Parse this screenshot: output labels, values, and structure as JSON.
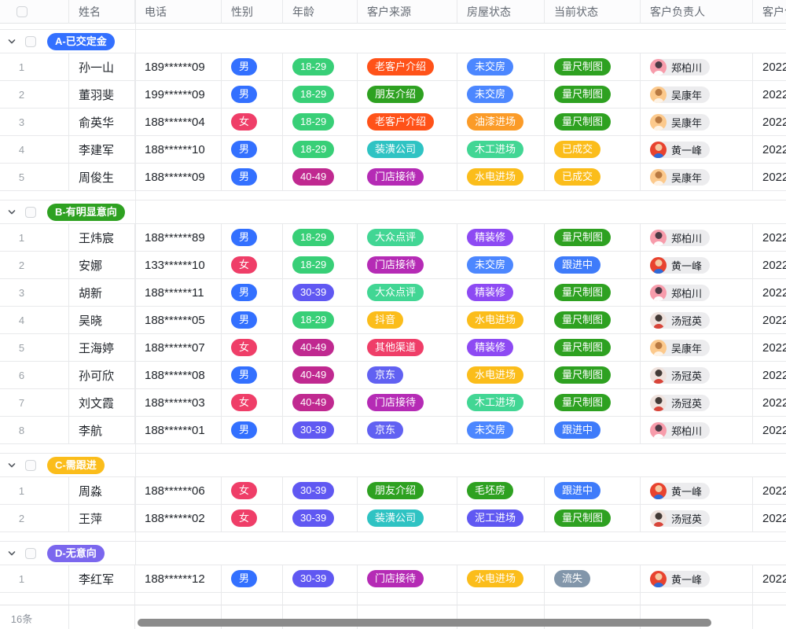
{
  "table": {
    "columns": [
      {
        "key": "index",
        "label": ""
      },
      {
        "key": "name",
        "label": "姓名"
      },
      {
        "key": "phone",
        "label": "电话"
      },
      {
        "key": "gender",
        "label": "性别"
      },
      {
        "key": "age",
        "label": "年龄"
      },
      {
        "key": "source",
        "label": "客户来源"
      },
      {
        "key": "house",
        "label": "房屋状态"
      },
      {
        "key": "status",
        "label": "当前状态"
      },
      {
        "key": "owner",
        "label": "客户负责人"
      },
      {
        "key": "created",
        "label": "客户创建时间"
      }
    ],
    "groups": [
      {
        "label": "A-已交定金",
        "color": "#3370ff",
        "rows": [
          {
            "index": 1,
            "name": "孙一山",
            "phone": "189******09",
            "gender": "男",
            "age": "18-29",
            "source": "老客户介绍",
            "house": "未交房",
            "status": "量尺制图",
            "owner": "郑柏川",
            "created": "2022"
          },
          {
            "index": 2,
            "name": "董羽斐",
            "phone": "199******09",
            "gender": "男",
            "age": "18-29",
            "source": "朋友介绍",
            "house": "未交房",
            "status": "量尺制图",
            "owner": "吴康年",
            "created": "2022"
          },
          {
            "index": 3,
            "name": "俞英华",
            "phone": "188******04",
            "gender": "女",
            "age": "18-29",
            "source": "老客户介绍",
            "house": "油漆进场",
            "status": "量尺制图",
            "owner": "吴康年",
            "created": "2022"
          },
          {
            "index": 4,
            "name": "李建军",
            "phone": "188******10",
            "gender": "男",
            "age": "18-29",
            "source": "装潢公司",
            "house": "木工进场",
            "status": "已成交",
            "owner": "黄一峰",
            "created": "2022"
          },
          {
            "index": 5,
            "name": "周俊生",
            "phone": "188******09",
            "gender": "男",
            "age": "40-49",
            "source": "门店接待",
            "house": "水电进场",
            "status": "已成交",
            "owner": "吴康年",
            "created": "2022"
          }
        ]
      },
      {
        "label": "B-有明显意向",
        "color": "#2ea121",
        "rows": [
          {
            "index": 1,
            "name": "王炜宸",
            "phone": "188******89",
            "gender": "男",
            "age": "18-29",
            "source": "大众点评",
            "house": "精装修",
            "status": "量尺制图",
            "owner": "郑柏川",
            "created": "2022"
          },
          {
            "index": 2,
            "name": "安娜",
            "phone": "133******10",
            "gender": "女",
            "age": "18-29",
            "source": "门店接待",
            "house": "未交房",
            "status": "跟进中",
            "owner": "黄一峰",
            "created": "2022"
          },
          {
            "index": 3,
            "name": "胡新",
            "phone": "188******11",
            "gender": "男",
            "age": "30-39",
            "source": "大众点评",
            "house": "精装修",
            "status": "量尺制图",
            "owner": "郑柏川",
            "created": "2022"
          },
          {
            "index": 4,
            "name": "吴晓",
            "phone": "188******05",
            "gender": "男",
            "age": "18-29",
            "source": "抖音",
            "house": "水电进场",
            "status": "量尺制图",
            "owner": "汤冠英",
            "created": "2022"
          },
          {
            "index": 5,
            "name": "王海婷",
            "phone": "188******07",
            "gender": "女",
            "age": "40-49",
            "source": "其他渠道",
            "house": "精装修",
            "status": "量尺制图",
            "owner": "吴康年",
            "created": "2022"
          },
          {
            "index": 6,
            "name": "孙可欣",
            "phone": "188******08",
            "gender": "男",
            "age": "40-49",
            "source": "京东",
            "house": "水电进场",
            "status": "量尺制图",
            "owner": "汤冠英",
            "created": "2022"
          },
          {
            "index": 7,
            "name": "刘文霞",
            "phone": "188******03",
            "gender": "女",
            "age": "40-49",
            "source": "门店接待",
            "house": "木工进场",
            "status": "量尺制图",
            "owner": "汤冠英",
            "created": "2022"
          },
          {
            "index": 8,
            "name": "李航",
            "phone": "188******01",
            "gender": "男",
            "age": "30-39",
            "source": "京东",
            "house": "未交房",
            "status": "跟进中",
            "owner": "郑柏川",
            "created": "2022"
          }
        ]
      },
      {
        "label": "C-需跟进",
        "color": "#fbbd1b",
        "rows": [
          {
            "index": 1,
            "name": "周淼",
            "phone": "188******06",
            "gender": "女",
            "age": "30-39",
            "source": "朋友介绍",
            "house": "毛坯房",
            "status": "跟进中",
            "owner": "黄一峰",
            "created": "2022"
          },
          {
            "index": 2,
            "name": "王萍",
            "phone": "188******02",
            "gender": "女",
            "age": "30-39",
            "source": "装潢公司",
            "house": "泥工进场",
            "status": "量尺制图",
            "owner": "汤冠英",
            "created": "2022"
          }
        ]
      },
      {
        "label": "D-无意向",
        "color": "#7b67ee",
        "rows": [
          {
            "index": 1,
            "name": "李红军",
            "phone": "188******12",
            "gender": "男",
            "age": "30-39",
            "source": "门店接待",
            "house": "水电进场",
            "status": "流失",
            "owner": "黄一峰",
            "created": "2022"
          }
        ]
      }
    ],
    "footer": {
      "count_label": "16条"
    }
  },
  "badge_colors": {
    "男": "#3370ff",
    "女": "#ef3e68",
    "18-29": "#38cf77",
    "30-39": "#6058f2",
    "40-49": "#c02990",
    "老客户介绍": "#ff5219",
    "朋友介绍": "#2ea121",
    "装潢公司": "#2fc3c3",
    "门店接待": "#b52bb5",
    "大众点评": "#42d694",
    "抖音": "#fbbd1b",
    "其他渠道": "#ef3e68",
    "京东": "#6161f2",
    "未交房": "#4c87ff",
    "油漆进场": "#fb9b28",
    "木工进场": "#42d694",
    "水电进场": "#fbbd1b",
    "精装修": "#8d4af3",
    "毛坯房": "#2ea121",
    "泥工进场": "#6058f2",
    "量尺制图": "#2ea121",
    "已成交": "#fbbd1b",
    "跟进中": "#3e7bfa",
    "流失": "#8296aa"
  },
  "owners": {
    "郑柏川": {
      "bg": "#f79cab",
      "head": "#4c3a45",
      "body": "#fdfdfd"
    },
    "吴康年": {
      "bg": "#fcc98c",
      "head": "#b97a42",
      "body": "#fdf3e7"
    },
    "黄一峰": {
      "bg": "#e8432f",
      "head": "#f5c9a2",
      "body": "#2f6bd8"
    },
    "汤冠英": {
      "bg": "#efe2dd",
      "head": "#433a36",
      "body": "#d8453a"
    }
  },
  "colors": {
    "border": "#e8e9eb",
    "header_text": "#646a73",
    "cell_text": "#1f2329",
    "row_index_text": "#9aa0a6",
    "chip_bg": "#ececee",
    "scrollbar": "#8b8b8b"
  }
}
